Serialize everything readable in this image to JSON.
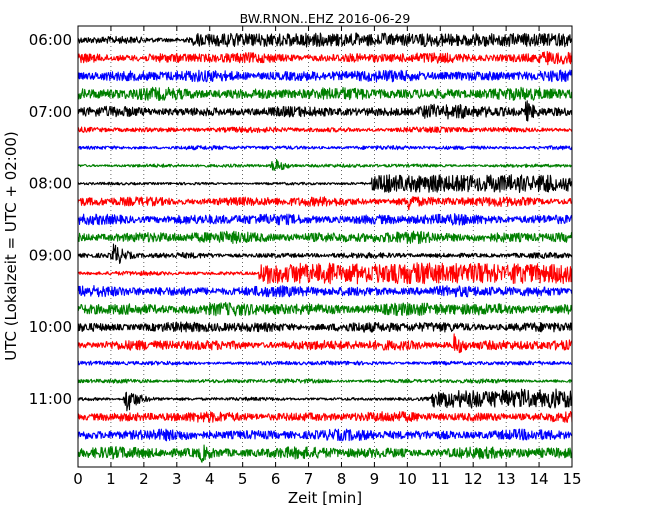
{
  "chart_data": {
    "type": "line",
    "title": "BW.RNON..EHZ 2016-06-29",
    "xlabel": "Zeit  [min]",
    "ylabel": "UTC (Lokalzeit = UTC + 02:00)",
    "xlim": [
      0,
      15
    ],
    "x_ticks": [
      "0",
      "1",
      "2",
      "3",
      "4",
      "5",
      "6",
      "7",
      "8",
      "9",
      "10",
      "11",
      "12",
      "13",
      "14",
      "15"
    ],
    "y_tick_labels": [
      "06:00",
      "07:00",
      "08:00",
      "09:00",
      "10:00",
      "11:00"
    ],
    "y_tick_rows": [
      0,
      4,
      8,
      12,
      16,
      20
    ],
    "grid": "vertical-dotted",
    "row_interval_min": 15,
    "colors": [
      "#000000",
      "#ff0000",
      "#0000ff",
      "#008000"
    ],
    "series": [
      {
        "start": "06:00",
        "noise": 0.55,
        "events": [
          {
            "from": 3.5,
            "to": 15,
            "amp": 1.0
          }
        ]
      },
      {
        "start": "06:15",
        "noise": 0.75,
        "events": [
          {
            "from": 13.9,
            "to": 15,
            "amp": 1.0
          }
        ]
      },
      {
        "start": "06:30",
        "noise": 0.85,
        "events": []
      },
      {
        "start": "06:45",
        "noise": 0.9,
        "events": []
      },
      {
        "start": "07:00",
        "noise": 0.75,
        "events": [
          {
            "from": 10.3,
            "to": 11.8,
            "amp": 1.1
          },
          {
            "at": 13.6,
            "amp": 1.6
          }
        ]
      },
      {
        "start": "07:15",
        "noise": 0.4,
        "events": []
      },
      {
        "start": "07:30",
        "noise": 0.3,
        "events": []
      },
      {
        "start": "07:45",
        "noise": 0.25,
        "events": [
          {
            "at": 5.9,
            "amp": 1.3
          }
        ]
      },
      {
        "start": "08:00",
        "noise": 0.2,
        "events": [
          {
            "from": 8.9,
            "to": 15,
            "amp": 1.3
          }
        ]
      },
      {
        "start": "08:15",
        "noise": 0.7,
        "events": [
          {
            "at": 10.0,
            "amp": 1.4
          }
        ]
      },
      {
        "start": "08:30",
        "noise": 0.8,
        "events": []
      },
      {
        "start": "08:45",
        "noise": 0.85,
        "events": []
      },
      {
        "start": "09:00",
        "noise": 0.4,
        "events": [
          {
            "at": 1.05,
            "amp": 2.0
          }
        ]
      },
      {
        "start": "09:15",
        "noise": 0.3,
        "events": [
          {
            "from": 5.5,
            "to": 15,
            "amp": 1.5
          }
        ]
      },
      {
        "start": "09:30",
        "noise": 0.8,
        "events": []
      },
      {
        "start": "09:45",
        "noise": 0.95,
        "events": []
      },
      {
        "start": "10:00",
        "noise": 0.75,
        "events": []
      },
      {
        "start": "10:15",
        "noise": 0.75,
        "events": [
          {
            "at": 11.4,
            "amp": 1.6
          }
        ]
      },
      {
        "start": "10:30",
        "noise": 0.3,
        "events": []
      },
      {
        "start": "10:45",
        "noise": 0.3,
        "events": []
      },
      {
        "start": "11:00",
        "noise": 0.25,
        "events": [
          {
            "at": 1.45,
            "amp": 2.2
          },
          {
            "from": 10.7,
            "to": 15,
            "amp": 1.4
          }
        ]
      },
      {
        "start": "11:15",
        "noise": 0.75,
        "events": []
      },
      {
        "start": "11:30",
        "noise": 0.8,
        "events": []
      },
      {
        "start": "11:45",
        "noise": 0.85,
        "events": [
          {
            "at": 3.7,
            "amp": 1.4
          }
        ]
      }
    ]
  }
}
